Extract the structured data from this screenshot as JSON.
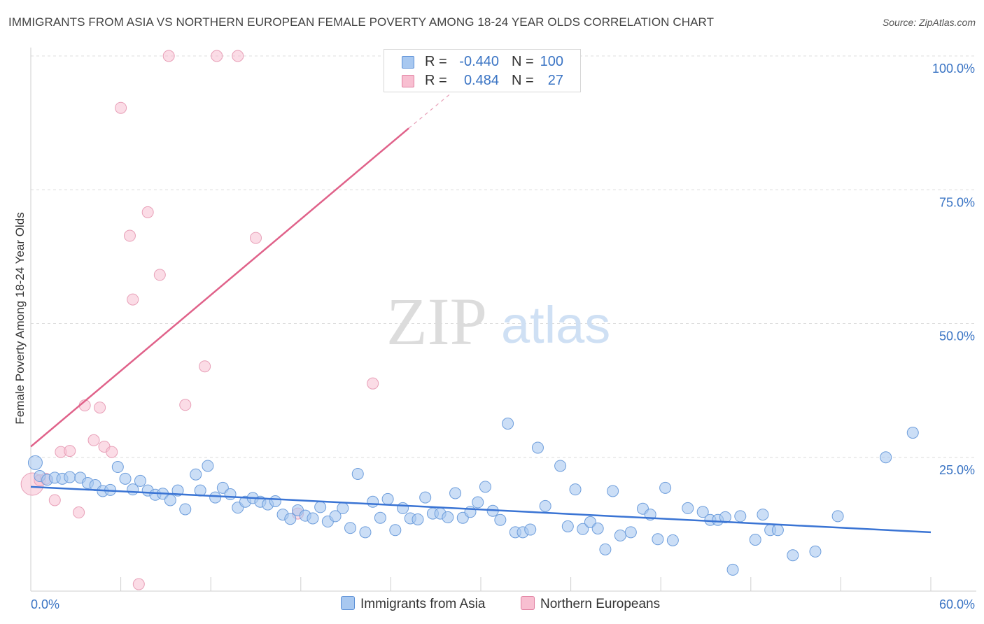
{
  "header": {
    "title": "IMMIGRANTS FROM ASIA VS NORTHERN EUROPEAN FEMALE POVERTY AMONG 18-24 YEAR OLDS CORRELATION CHART",
    "source": "Source: ZipAtlas.com"
  },
  "watermark": {
    "zip": "ZIP",
    "atlas": "atlas"
  },
  "legend": {
    "rows": [
      {
        "r_label": "R =",
        "r_value": "-0.440",
        "n_label": "N =",
        "n_value": "100",
        "color": "#a8c8f0",
        "border": "#5b8fd6"
      },
      {
        "r_label": "R =",
        "r_value": "0.484",
        "n_label": "N =",
        "n_value": "27",
        "color": "#f8bfd1",
        "border": "#e07fa0"
      }
    ]
  },
  "bottom_legend": {
    "asia": "Immigrants from Asia",
    "northern": "Northern Europeans"
  },
  "chart_data": {
    "type": "scatter",
    "title": "IMMIGRANTS FROM ASIA VS NORTHERN EUROPEAN FEMALE POVERTY AMONG 18-24 YEAR OLDS CORRELATION CHART",
    "xlabel": "",
    "ylabel": "Female Poverty Among 18-24 Year Olds",
    "xlim": [
      0,
      60
    ],
    "ylim": [
      0,
      100
    ],
    "x_tick_labels": [
      "0.0%",
      "60.0%"
    ],
    "y_ticks": [
      25,
      50,
      75,
      100
    ],
    "y_tick_labels": [
      "25.0%",
      "50.0%",
      "75.0%",
      "100.0%"
    ],
    "grid": true,
    "colors": {
      "asia": "#3a74d4",
      "asia_fill": "#a8c8f0",
      "northern": "#e0628a",
      "northern_fill": "#f8bfd1",
      "tick": "#3a74c4"
    },
    "series": [
      {
        "name": "Immigrants from Asia",
        "trend": {
          "x0": 0,
          "y0": 19.5,
          "x1": 60,
          "y1": 11.0
        },
        "points": [
          [
            0.3,
            24.0
          ],
          [
            0.6,
            21.5
          ],
          [
            1.1,
            20.8
          ],
          [
            1.6,
            21.2
          ],
          [
            2.1,
            21.0
          ],
          [
            2.6,
            21.3
          ],
          [
            3.3,
            21.2
          ],
          [
            3.8,
            20.2
          ],
          [
            4.3,
            19.8
          ],
          [
            4.8,
            18.7
          ],
          [
            5.3,
            18.9
          ],
          [
            5.8,
            23.2
          ],
          [
            6.3,
            21.0
          ],
          [
            6.8,
            19.0
          ],
          [
            7.3,
            20.6
          ],
          [
            7.8,
            18.8
          ],
          [
            8.3,
            18.0
          ],
          [
            8.8,
            18.2
          ],
          [
            9.3,
            17.0
          ],
          [
            9.8,
            18.8
          ],
          [
            10.3,
            15.3
          ],
          [
            11.0,
            21.8
          ],
          [
            11.3,
            18.8
          ],
          [
            11.8,
            23.4
          ],
          [
            12.3,
            17.5
          ],
          [
            12.8,
            19.3
          ],
          [
            13.3,
            18.1
          ],
          [
            13.8,
            15.6
          ],
          [
            14.3,
            16.7
          ],
          [
            14.8,
            17.4
          ],
          [
            15.3,
            16.7
          ],
          [
            15.8,
            16.2
          ],
          [
            16.3,
            16.8
          ],
          [
            16.8,
            14.3
          ],
          [
            17.3,
            13.5
          ],
          [
            17.8,
            15.1
          ],
          [
            18.3,
            14.1
          ],
          [
            18.8,
            13.6
          ],
          [
            19.3,
            15.7
          ],
          [
            19.8,
            13.0
          ],
          [
            20.3,
            14.0
          ],
          [
            20.8,
            15.5
          ],
          [
            21.3,
            11.8
          ],
          [
            21.8,
            21.9
          ],
          [
            22.3,
            11.0
          ],
          [
            22.8,
            16.7
          ],
          [
            23.3,
            13.7
          ],
          [
            23.8,
            17.2
          ],
          [
            24.3,
            11.4
          ],
          [
            24.8,
            15.5
          ],
          [
            25.3,
            13.6
          ],
          [
            25.8,
            13.4
          ],
          [
            26.3,
            17.5
          ],
          [
            26.8,
            14.5
          ],
          [
            27.3,
            14.5
          ],
          [
            27.8,
            13.8
          ],
          [
            28.3,
            18.3
          ],
          [
            28.8,
            13.7
          ],
          [
            29.3,
            14.8
          ],
          [
            29.8,
            16.6
          ],
          [
            30.3,
            19.5
          ],
          [
            30.8,
            15.0
          ],
          [
            31.3,
            13.3
          ],
          [
            31.8,
            31.3
          ],
          [
            32.3,
            11.0
          ],
          [
            32.8,
            11.0
          ],
          [
            33.3,
            11.5
          ],
          [
            33.8,
            26.8
          ],
          [
            34.3,
            15.9
          ],
          [
            35.3,
            23.4
          ],
          [
            35.8,
            12.1
          ],
          [
            36.3,
            19.0
          ],
          [
            36.8,
            11.6
          ],
          [
            37.3,
            12.9
          ],
          [
            37.8,
            11.7
          ],
          [
            38.3,
            7.8
          ],
          [
            38.8,
            18.7
          ],
          [
            39.3,
            10.4
          ],
          [
            40.0,
            11.0
          ],
          [
            40.8,
            15.4
          ],
          [
            41.3,
            14.3
          ],
          [
            41.8,
            9.7
          ],
          [
            42.3,
            19.3
          ],
          [
            42.8,
            9.5
          ],
          [
            43.8,
            15.5
          ],
          [
            44.8,
            14.8
          ],
          [
            45.3,
            13.3
          ],
          [
            45.8,
            13.3
          ],
          [
            46.3,
            13.8
          ],
          [
            46.8,
            4.0
          ],
          [
            47.3,
            14.0
          ],
          [
            48.3,
            9.6
          ],
          [
            48.8,
            14.3
          ],
          [
            49.3,
            11.4
          ],
          [
            49.8,
            11.4
          ],
          [
            50.8,
            6.7
          ],
          [
            52.3,
            7.4
          ],
          [
            53.8,
            14.0
          ],
          [
            57.0,
            25.0
          ],
          [
            58.8,
            29.6
          ]
        ]
      },
      {
        "name": "Northern Europeans",
        "trend": {
          "x0": 0,
          "y0": 27.0,
          "x1": 25.2,
          "y1": 86.5,
          "x_dash_end": 28.0,
          "y_dash_end": 93.0
        },
        "points": [
          [
            0.1,
            20.0
          ],
          [
            0.6,
            20.7
          ],
          [
            1.0,
            21.0
          ],
          [
            1.6,
            17.0
          ],
          [
            2.0,
            26.0
          ],
          [
            2.6,
            26.2
          ],
          [
            3.2,
            14.7
          ],
          [
            3.6,
            34.7
          ],
          [
            4.2,
            28.2
          ],
          [
            4.6,
            34.3
          ],
          [
            4.9,
            27.0
          ],
          [
            5.4,
            26.0
          ],
          [
            6.0,
            90.3
          ],
          [
            6.6,
            66.4
          ],
          [
            6.8,
            54.5
          ],
          [
            7.2,
            1.3
          ],
          [
            7.8,
            70.8
          ],
          [
            8.6,
            59.1
          ],
          [
            9.2,
            100.0
          ],
          [
            10.3,
            34.8
          ],
          [
            11.6,
            42.0
          ],
          [
            12.4,
            100.0
          ],
          [
            13.8,
            100.0
          ],
          [
            15.0,
            66.0
          ],
          [
            17.8,
            14.5
          ],
          [
            22.8,
            38.8
          ],
          [
            24.1,
            100.0
          ]
        ]
      }
    ]
  }
}
